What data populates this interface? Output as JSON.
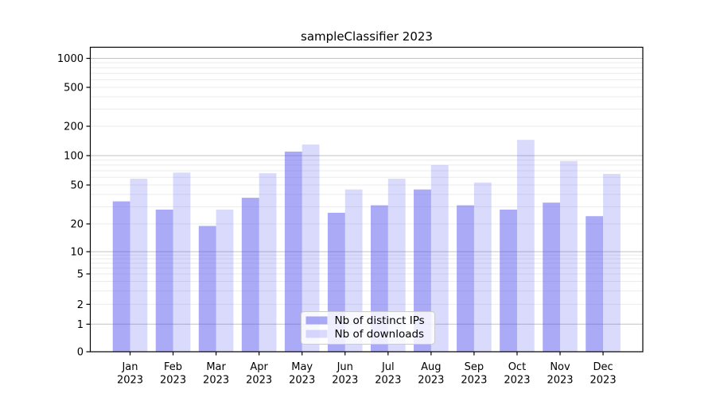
{
  "chart_data": {
    "type": "bar",
    "title": "sampleClassifier 2023",
    "categories": [
      "Jan",
      "Feb",
      "Mar",
      "Apr",
      "May",
      "Jun",
      "Jul",
      "Aug",
      "Sep",
      "Oct",
      "Nov",
      "Dec"
    ],
    "year_label": "2023",
    "series": [
      {
        "name": "Nb of distinct IPs",
        "color": "#a2a2f0",
        "fill": "rgba(85,85,240,0.5)",
        "values": [
          34,
          28,
          19,
          37,
          110,
          26,
          31,
          45,
          31,
          28,
          33,
          24
        ]
      },
      {
        "name": "Nb of downloads",
        "color": "#d9d9f8",
        "fill": "rgba(85,85,240,0.22)",
        "values": [
          58,
          67,
          28,
          66,
          130,
          45,
          58,
          80,
          53,
          145,
          88,
          65
        ]
      }
    ],
    "xlabel": "",
    "ylabel": "",
    "y_axis": {
      "scale": "symlog",
      "ticks": [
        0,
        1,
        2,
        5,
        10,
        20,
        50,
        100,
        200,
        500,
        1000
      ],
      "ylim": [
        0,
        1300
      ]
    },
    "grid": {
      "show": true,
      "major_at": [
        1,
        10,
        100,
        1000
      ],
      "major_color": "#c3c3c3",
      "minor_color": "#ebebeb"
    },
    "legend": {
      "position": "lower center",
      "entries": [
        "Nb of distinct IPs",
        "Nb of downloads"
      ]
    },
    "axes": {
      "spine_color": "#000000",
      "background": "#ffffff"
    }
  }
}
